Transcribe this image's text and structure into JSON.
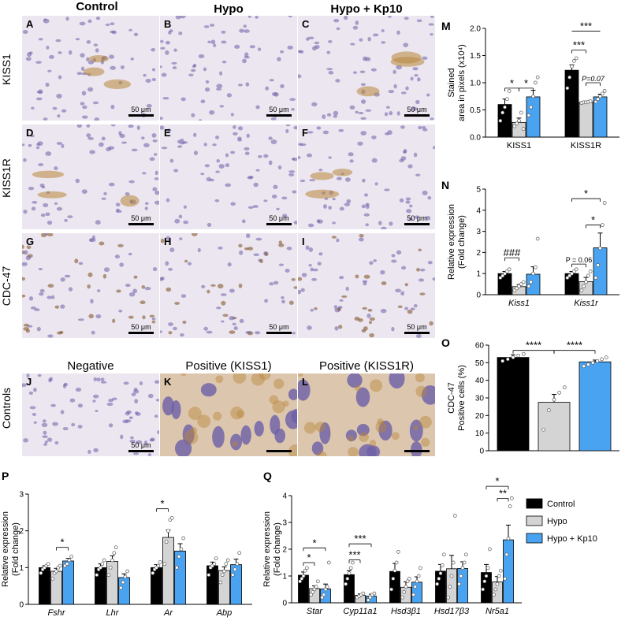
{
  "headers": {
    "col1": "Control",
    "col2": "Hypo",
    "col3": "Hypo + Kp10",
    "neg": "Negative",
    "posk": "Positive (KISS1)",
    "posr": "Positive (KISS1R)"
  },
  "row_labels": [
    "KISS1",
    "KISS1R",
    "CDC-47",
    "Controls"
  ],
  "micrographs": [
    {
      "letter": "A",
      "scale": "50 μm"
    },
    {
      "letter": "B",
      "scale": "50 μm"
    },
    {
      "letter": "C",
      "scale": "50 μm"
    },
    {
      "letter": "D",
      "scale": "50 μm"
    },
    {
      "letter": "E",
      "scale": "50 μm"
    },
    {
      "letter": "F",
      "scale": "50 μm"
    },
    {
      "letter": "G",
      "scale": "50 μm"
    },
    {
      "letter": "H",
      "scale": "50 μm"
    },
    {
      "letter": "I",
      "scale": "50 μm"
    },
    {
      "letter": "J",
      "scale": "50 μm"
    },
    {
      "letter": "K",
      "scale": ""
    },
    {
      "letter": "L",
      "scale": ""
    }
  ],
  "colors": {
    "control": "#000000",
    "hypo": "#d4d4d4",
    "kp10": "#4aa3f0",
    "tissue": "#c9c1de",
    "nuclei": "#6b5fa8",
    "dab": "#b8863a"
  },
  "legend": [
    "Control",
    "Hypo",
    "Hypo + Kp10"
  ],
  "chart_data": [
    {
      "id": "M",
      "type": "bar",
      "letter": "M",
      "ylabel": [
        "Stained",
        "area in pixels (x10⁴)"
      ],
      "ylim": [
        0,
        2.0
      ],
      "yticks": [
        "0.0",
        "0.5",
        "1.0",
        "1.5",
        "2.0"
      ],
      "categories": [
        "KISS1",
        "KISS1R"
      ],
      "italic_cats": false,
      "series": [
        {
          "name": "Control",
          "values": [
            0.6,
            1.23
          ],
          "err": [
            0.1,
            0.1
          ],
          "points": [
            [
              0.3,
              0.45,
              0.55,
              0.7,
              0.85
            ],
            [
              0.9,
              1.1,
              1.3,
              1.4,
              1.45
            ]
          ]
        },
        {
          "name": "Hypo",
          "values": [
            0.27,
            0.64
          ],
          "err": [
            0.08,
            0.01
          ],
          "points": [
            [
              0.2,
              0.25,
              0.3,
              0.45,
              0.15
            ],
            [
              0.63,
              0.64,
              0.64,
              0.65,
              0.66
            ]
          ]
        },
        {
          "name": "Hypo + Kp10",
          "values": [
            0.74,
            0.74
          ],
          "err": [
            0.12,
            0.05
          ],
          "points": [
            [
              0.4,
              0.55,
              0.75,
              1.0,
              1.1
            ],
            [
              0.65,
              0.7,
              0.75,
              0.8,
              0.85
            ]
          ]
        }
      ],
      "sig": [
        {
          "a": [
            0,
            0
          ],
          "b": [
            0,
            1
          ],
          "text": "*",
          "y": 0.9,
          "tick": true
        },
        {
          "a": [
            0,
            1
          ],
          "b": [
            0,
            2
          ],
          "text": "*",
          "y": 0.9,
          "tick": true
        },
        {
          "a": [
            1,
            0
          ],
          "b": [
            1,
            1
          ],
          "text": "***",
          "y": 1.6,
          "tick": true
        },
        {
          "a": [
            1,
            0
          ],
          "b": [
            1,
            2
          ],
          "text": "***",
          "y": 1.95,
          "tick": false
        },
        {
          "a": [
            1,
            1
          ],
          "b": [
            1,
            2
          ],
          "text": "P=0.07",
          "y": 1.0,
          "tick": true,
          "italic": true
        }
      ]
    },
    {
      "id": "N",
      "type": "bar",
      "letter": "N",
      "ylabel": [
        "Relative expression",
        "(Fold change)"
      ],
      "ylim": [
        0,
        5
      ],
      "yticks": [
        "0",
        "1",
        "2",
        "3",
        "4",
        "5"
      ],
      "categories": [
        "Kiss1",
        "Kiss1r"
      ],
      "italic_cats": true,
      "series": [
        {
          "name": "Control",
          "values": [
            1.0,
            1.0
          ],
          "err": [
            0.1,
            0.1
          ],
          "points": [
            [
              0.8,
              0.9,
              1.0,
              1.1,
              1.2
            ],
            [
              0.8,
              0.9,
              1.0,
              1.1,
              1.2
            ]
          ]
        },
        {
          "name": "Hypo",
          "values": [
            0.38,
            0.62
          ],
          "err": [
            0.1,
            0.2
          ],
          "points": [
            [
              0.2,
              0.3,
              0.4,
              0.5,
              0.6
            ],
            [
              0.2,
              0.4,
              0.6,
              0.9,
              1.1
            ]
          ]
        },
        {
          "name": "Hypo + Kp10",
          "values": [
            0.97,
            2.22
          ],
          "err": [
            0.35,
            0.7
          ],
          "points": [
            [
              0.4,
              0.6,
              1.0,
              1.3,
              2.65
            ],
            [
              0.8,
              1.4,
              2.2,
              3.3,
              4.35
            ]
          ]
        }
      ],
      "sig": [
        {
          "a": [
            0,
            0
          ],
          "b": [
            0,
            1
          ],
          "text": "###",
          "y": 1.75,
          "tick": true
        },
        {
          "a": [
            1,
            0
          ],
          "b": [
            1,
            1
          ],
          "text": "P = 0.06",
          "y": 1.45,
          "tick": true
        },
        {
          "a": [
            1,
            1
          ],
          "b": [
            1,
            2
          ],
          "text": "*",
          "y": 3.3,
          "tick": true
        },
        {
          "a": [
            1,
            0
          ],
          "b": [
            1,
            2
          ],
          "text": "*",
          "y": 4.55,
          "tick": true
        }
      ]
    },
    {
      "id": "O",
      "type": "bar",
      "letter": "O",
      "ylabel": [
        "CDC-47",
        "Positive cells (%)"
      ],
      "ylim": [
        0,
        60
      ],
      "yticks": [
        "0",
        "10",
        "20",
        "30",
        "40",
        "50",
        "60"
      ],
      "categories": [
        ""
      ],
      "italic_cats": false,
      "series": [
        {
          "name": "Control",
          "values": [
            53
          ],
          "err": [
            1.5
          ],
          "points": [
            [
              51,
              52,
              53,
              54,
              55
            ]
          ]
        },
        {
          "name": "Hypo",
          "values": [
            27.5
          ],
          "err": [
            4.5
          ],
          "points": [
            [
              12,
              23,
              29,
              33,
              36
            ]
          ]
        },
        {
          "name": "Hypo + Kp10",
          "values": [
            50.5
          ],
          "err": [
            1.0
          ],
          "points": [
            [
              48,
              49,
              50,
              51,
              52,
              53
            ]
          ]
        }
      ],
      "sig": [
        {
          "a": [
            0,
            0
          ],
          "b": [
            0,
            1
          ],
          "text": "****",
          "y": 57,
          "tick": true
        },
        {
          "a": [
            0,
            1
          ],
          "b": [
            0,
            2
          ],
          "text": "****",
          "y": 57,
          "tick": true
        }
      ]
    },
    {
      "id": "P",
      "type": "bar",
      "letter": "P",
      "ylabel": [
        "Relative expression",
        "(Fold change)"
      ],
      "ylim": [
        0,
        3
      ],
      "yticks": [
        "0",
        "1",
        "2",
        "3"
      ],
      "categories": [
        "Fshr",
        "Lhr",
        "Ar",
        "Abp"
      ],
      "italic_cats": true,
      "series": [
        {
          "name": "Control",
          "values": [
            1.0,
            1.0,
            1.0,
            1.05
          ],
          "err": [
            0.05,
            0.1,
            0.08,
            0.1
          ],
          "points": [
            [
              0.85,
              0.95,
              1.0,
              1.05,
              1.1
            ],
            [
              0.8,
              0.95,
              1.0,
              1.1,
              1.2
            ],
            [
              0.85,
              0.95,
              1.0,
              1.05,
              1.15
            ],
            [
              0.8,
              1.0,
              1.05,
              1.1,
              1.25
            ]
          ]
        },
        {
          "name": "Hypo",
          "values": [
            0.9,
            1.17,
            1.82,
            0.92
          ],
          "err": [
            0.08,
            0.15,
            0.2,
            0.1
          ],
          "points": [
            [
              0.7,
              0.85,
              0.9,
              1.0,
              1.05
            ],
            [
              0.8,
              1.0,
              1.2,
              1.4,
              1.55
            ],
            [
              1.1,
              1.7,
              2.0,
              2.3,
              2.35
            ],
            [
              0.6,
              0.8,
              0.9,
              1.1,
              1.2
            ]
          ]
        },
        {
          "name": "Hypo + Kp10",
          "values": [
            1.18,
            0.73,
            1.45,
            1.08
          ],
          "err": [
            0.07,
            0.1,
            0.2,
            0.15
          ],
          "points": [
            [
              1.05,
              1.1,
              1.2,
              1.3
            ],
            [
              0.45,
              0.6,
              0.75,
              0.9
            ],
            [
              1.0,
              1.3,
              1.5,
              1.8
            ],
            [
              0.8,
              0.95,
              1.1,
              1.4
            ]
          ]
        }
      ],
      "sig": [
        {
          "a": [
            0,
            1
          ],
          "b": [
            0,
            2
          ],
          "text": "*",
          "y": 1.55,
          "tick": true
        },
        {
          "a": [
            2,
            0
          ],
          "b": [
            2,
            1
          ],
          "text": "*",
          "y": 2.6,
          "tick": true
        }
      ]
    },
    {
      "id": "Q",
      "type": "bar",
      "letter": "Q",
      "ylabel": [
        "Relative expression",
        "(Fold change)"
      ],
      "ylim": [
        0,
        4
      ],
      "yticks": [
        "0",
        "1",
        "2",
        "3",
        "4"
      ],
      "categories": [
        "Star",
        "Cyp11a1",
        "Hsd3β1",
        "Hsd17β3",
        "Nr5a1"
      ],
      "italic_cats": true,
      "series": [
        {
          "name": "Control",
          "values": [
            1.03,
            1.05,
            1.17,
            1.18,
            1.13
          ],
          "err": [
            0.12,
            0.15,
            0.3,
            0.25,
            0.3
          ],
          "points": [
            [
              0.8,
              0.9,
              1.0,
              1.2,
              1.3
            ],
            [
              0.7,
              0.9,
              1.1,
              1.3,
              1.5
            ],
            [
              0.5,
              0.9,
              1.2,
              1.5,
              1.9
            ],
            [
              0.7,
              0.9,
              1.1,
              1.4,
              1.8
            ],
            [
              0.5,
              0.8,
              1.0,
              1.3,
              2.0
            ]
          ]
        },
        {
          "name": "Hypo",
          "values": [
            0.53,
            0.28,
            0.58,
            1.27,
            0.78
          ],
          "err": [
            0.1,
            0.05,
            0.2,
            0.5,
            0.2
          ],
          "points": [
            [
              0.3,
              0.4,
              0.5,
              0.6,
              0.8
            ],
            [
              0.2,
              0.25,
              0.3,
              0.35
            ],
            [
              0.2,
              0.4,
              0.6,
              0.8,
              0.9
            ],
            [
              0.2,
              0.6,
              1.0,
              1.5,
              3.25
            ],
            [
              0.3,
              0.5,
              0.7,
              1.0,
              1.2
            ]
          ]
        },
        {
          "name": "Hypo + Kp10",
          "values": [
            0.52,
            0.25,
            0.77,
            1.28,
            2.35
          ],
          "err": [
            0.18,
            0.07,
            0.2,
            0.25,
            0.55
          ],
          "points": [
            [
              0.2,
              0.3,
              0.5,
              0.6,
              1.5
            ],
            [
              0.1,
              0.2,
              0.3,
              0.35
            ],
            [
              0.3,
              0.6,
              0.8,
              1.0,
              1.3
            ],
            [
              0.7,
              1.0,
              1.3,
              1.5,
              1.8
            ],
            [
              0.9,
              1.8,
              2.4,
              3.6,
              3.9
            ]
          ]
        }
      ],
      "sig": [
        {
          "a": [
            0,
            0
          ],
          "b": [
            0,
            1
          ],
          "text": "*",
          "y": 1.5,
          "tick": true
        },
        {
          "a": [
            0,
            0
          ],
          "b": [
            0,
            2
          ],
          "text": "*",
          "y": 2.05,
          "tick": true
        },
        {
          "a": [
            1,
            0
          ],
          "b": [
            1,
            1
          ],
          "text": "***",
          "y": 1.6,
          "tick": true
        },
        {
          "a": [
            1,
            0
          ],
          "b": [
            1,
            2
          ],
          "text": "***",
          "y": 2.2,
          "tick": true
        },
        {
          "a": [
            4,
            1
          ],
          "b": [
            4,
            2
          ],
          "text": "**",
          "y": 3.9,
          "tick": true
        },
        {
          "a": [
            4,
            0
          ],
          "b": [
            4,
            2
          ],
          "text": "*",
          "y": 4.35,
          "tick": true
        }
      ]
    }
  ]
}
